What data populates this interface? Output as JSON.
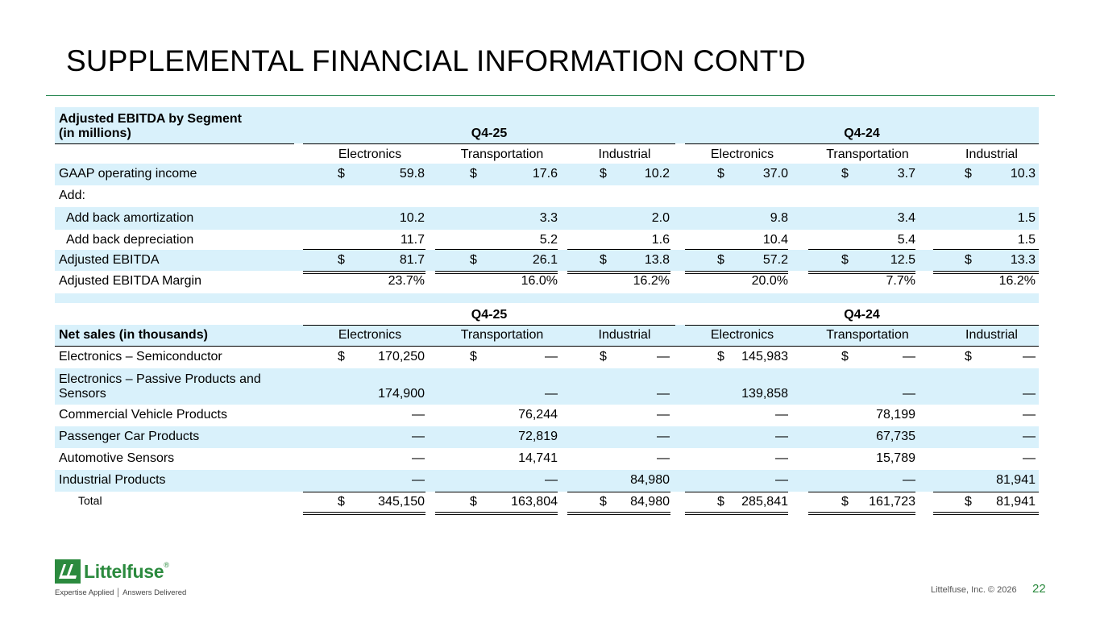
{
  "title": "SUPPLEMENTAL FINANCIAL INFORMATION CONT'D",
  "ebitda": {
    "header_line1": "Adjusted EBITDA by Segment",
    "header_line2": "(in millions)",
    "period1": "Q4-25",
    "period2": "Q4-24",
    "segments": [
      "Electronics",
      "Transportation",
      "Industrial",
      "Electronics",
      "Transportation",
      "Industrial"
    ],
    "rows": [
      {
        "label": "GAAP operating income",
        "dollar": true,
        "values": [
          "59.8",
          "17.6",
          "10.2",
          "37.0",
          "3.7",
          "10.3"
        ]
      },
      {
        "label": "Add:",
        "dollar": false,
        "values": [
          "",
          "",
          "",
          "",
          "",
          ""
        ]
      },
      {
        "label": "Add back amortization",
        "dollar": false,
        "values": [
          "10.2",
          "3.3",
          "2.0",
          "9.8",
          "3.4",
          "1.5"
        ]
      },
      {
        "label": "Add back depreciation",
        "dollar": false,
        "values": [
          "11.7",
          "5.2",
          "1.6",
          "10.4",
          "5.4",
          "1.5"
        ]
      },
      {
        "label": "Adjusted EBITDA",
        "dollar": true,
        "values": [
          "81.7",
          "26.1",
          "13.8",
          "57.2",
          "12.5",
          "13.3"
        ]
      },
      {
        "label": "Adjusted EBITDA Margin",
        "dollar": false,
        "values": [
          "23.7%",
          "16.0%",
          "16.2%",
          "20.0%",
          "7.7%",
          "16.2%"
        ]
      }
    ]
  },
  "sales": {
    "period1": "Q4-25",
    "period2": "Q4-24",
    "header_label": "Net sales (in thousands)",
    "segments": [
      "Electronics",
      "Transportation",
      "Industrial",
      "Electronics",
      "Transportation",
      "Industrial"
    ],
    "rows": [
      {
        "label": "Electronics – Semiconductor",
        "dollar": true,
        "values": [
          "170,250",
          "—",
          "—",
          "145,983",
          "—",
          "—"
        ]
      },
      {
        "label_line1": "Electronics – Passive Products and",
        "label_line2": "Sensors",
        "dollar": false,
        "values": [
          "174,900",
          "—",
          "—",
          "139,858",
          "—",
          "—"
        ]
      },
      {
        "label": "Commercial Vehicle Products",
        "dollar": false,
        "values": [
          "—",
          "76,244",
          "—",
          "—",
          "78,199",
          "—"
        ]
      },
      {
        "label": "Passenger Car Products",
        "dollar": false,
        "values": [
          "—",
          "72,819",
          "—",
          "—",
          "67,735",
          "—"
        ]
      },
      {
        "label": "Automotive Sensors",
        "dollar": false,
        "values": [
          "—",
          "14,741",
          "—",
          "—",
          "15,789",
          "—"
        ]
      },
      {
        "label": "Industrial Products",
        "dollar": false,
        "values": [
          "—",
          "—",
          "84,980",
          "—",
          "—",
          "81,941"
        ]
      },
      {
        "label": "Total",
        "dollar": true,
        "values": [
          "345,150",
          "163,804",
          "84,980",
          "285,841",
          "161,723",
          "81,941"
        ]
      }
    ]
  },
  "currency_symbol": "$",
  "logo": {
    "name": "Littelfuse",
    "registered": "®",
    "tagline": "Expertise Applied │ Answers Delivered"
  },
  "footer": {
    "company": "Littelfuse, Inc. © 2026",
    "page": "22"
  },
  "colors": {
    "accent": "#2b8a3e",
    "row_shade": "#d9f1fb"
  }
}
